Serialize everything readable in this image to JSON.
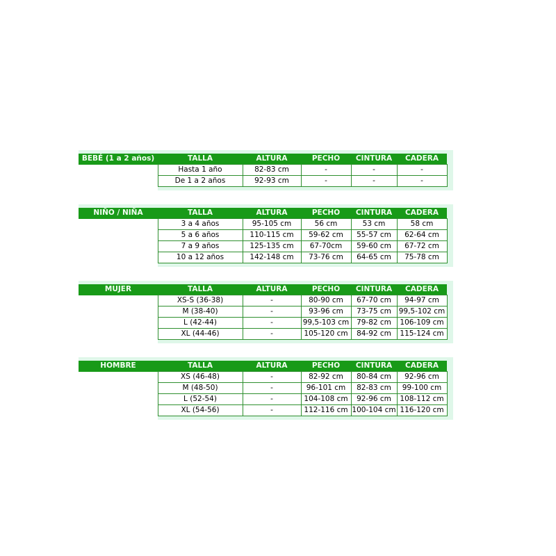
{
  "colors": {
    "header_green": "#189a18",
    "border_green": "#2e8f2e",
    "panel_mint": "#dff7e9",
    "header_text": "#f2fff2",
    "cell_text": "#000000",
    "page_background": "#ffffff"
  },
  "chart_data": [
    {
      "type": "table",
      "category": "BEBÉ (1 a 2 años)",
      "columns": [
        "TALLA",
        "ALTURA",
        "PECHO",
        "CINTURA",
        "CADERA"
      ],
      "rows": [
        [
          "Hasta 1 año",
          "82-83 cm",
          "-",
          "-",
          "-"
        ],
        [
          "De 1 a 2 años",
          "92-93 cm",
          "-",
          "-",
          "-"
        ]
      ]
    },
    {
      "type": "table",
      "category": "NIÑO / NIÑA",
      "columns": [
        "TALLA",
        "ALTURA",
        "PECHO",
        "CINTURA",
        "CADERA"
      ],
      "rows": [
        [
          "3 a 4 años",
          "95-105 cm",
          "56 cm",
          "53 cm",
          "58 cm"
        ],
        [
          "5 a 6 años",
          "110-115 cm",
          "59-62 cm",
          "55-57 cm",
          "62-64 cm"
        ],
        [
          "7 a 9 años",
          "125-135 cm",
          "67-70cm",
          "59-60 cm",
          "67-72 cm"
        ],
        [
          "10 a 12 años",
          "142-148 cm",
          "73-76 cm",
          "64-65 cm",
          "75-78 cm"
        ]
      ]
    },
    {
      "type": "table",
      "category": "MUJER",
      "columns": [
        "TALLA",
        "ALTURA",
        "PECHO",
        "CINTURA",
        "CADERA"
      ],
      "rows": [
        [
          "XS-S (36-38)",
          "-",
          "80-90 cm",
          "67-70 cm",
          "94-97 cm"
        ],
        [
          "M (38-40)",
          "-",
          "93-96 cm",
          "73-75 cm",
          "99,5-102 cm"
        ],
        [
          "L (42-44)",
          "-",
          "99,5-103 cm",
          "79-82 cm",
          "106-109 cm"
        ],
        [
          "XL (44-46)",
          "-",
          "105-120 cm",
          "84-92 cm",
          "115-124 cm"
        ]
      ]
    },
    {
      "type": "table",
      "category": "HOMBRE",
      "columns": [
        "TALLA",
        "ALTURA",
        "PECHO",
        "CINTURA",
        "CADERA"
      ],
      "rows": [
        [
          "XS (46-48)",
          "-",
          "82-92 cm",
          "80-84 cm",
          "92-96 cm"
        ],
        [
          "M (48-50)",
          "-",
          "96-101 cm",
          "82-83 cm",
          "99-100 cm"
        ],
        [
          "L (52-54)",
          "-",
          "104-108 cm",
          "92-96 cm",
          "108-112 cm"
        ],
        [
          "XL (54-56)",
          "-",
          "112-116 cm",
          "100-104 cm",
          "116-120 cm"
        ]
      ]
    }
  ]
}
